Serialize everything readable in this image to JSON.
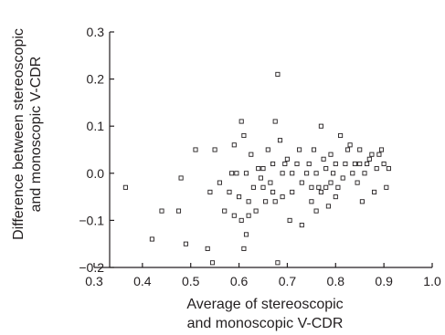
{
  "chart_data": {
    "type": "scatter",
    "xlabel_lines": [
      "Average of stereoscopic",
      "and monoscopic V-CDR"
    ],
    "ylabel_lines": [
      "Difference between stereoscopic",
      "and monoscopic V-CDR"
    ],
    "xlim": [
      0.3,
      1.0
    ],
    "ylim": [
      -0.2,
      0.3
    ],
    "xticks": [
      0.3,
      0.4,
      0.5,
      0.6,
      0.7,
      0.8,
      0.9,
      1.0
    ],
    "yticks": [
      -0.2,
      -0.1,
      0.0,
      0.1,
      0.2,
      0.3
    ],
    "xtick_labels": [
      "0.3",
      "0.4",
      "0.5",
      "0.6",
      "0.7",
      "0.8",
      "0.9",
      "1.0"
    ],
    "ytick_labels": [
      "−0.2",
      "−0.1",
      "0.0",
      "0.1",
      "0.2",
      "0.3"
    ],
    "marker": "open-square",
    "grid": false,
    "points": [
      [
        0.365,
        -0.03
      ],
      [
        0.42,
        -0.14
      ],
      [
        0.44,
        -0.08
      ],
      [
        0.475,
        -0.08
      ],
      [
        0.48,
        -0.01
      ],
      [
        0.49,
        -0.15
      ],
      [
        0.51,
        0.05
      ],
      [
        0.535,
        -0.16
      ],
      [
        0.54,
        -0.04
      ],
      [
        0.545,
        -0.19
      ],
      [
        0.55,
        0.05
      ],
      [
        0.56,
        -0.02
      ],
      [
        0.57,
        -0.08
      ],
      [
        0.58,
        -0.04
      ],
      [
        0.585,
        0.0
      ],
      [
        0.59,
        0.06
      ],
      [
        0.59,
        -0.09
      ],
      [
        0.595,
        0.0
      ],
      [
        0.6,
        -0.05
      ],
      [
        0.605,
        -0.1
      ],
      [
        0.605,
        0.11
      ],
      [
        0.61,
        -0.16
      ],
      [
        0.61,
        0.08
      ],
      [
        0.615,
        -0.13
      ],
      [
        0.615,
        0.0
      ],
      [
        0.62,
        -0.06
      ],
      [
        0.62,
        -0.09
      ],
      [
        0.625,
        0.04
      ],
      [
        0.63,
        -0.03
      ],
      [
        0.635,
        -0.08
      ],
      [
        0.64,
        0.01
      ],
      [
        0.645,
        -0.01
      ],
      [
        0.65,
        -0.03
      ],
      [
        0.65,
        0.01
      ],
      [
        0.655,
        -0.06
      ],
      [
        0.66,
        0.05
      ],
      [
        0.665,
        -0.02
      ],
      [
        0.67,
        -0.04
      ],
      [
        0.67,
        0.02
      ],
      [
        0.675,
        -0.06
      ],
      [
        0.675,
        0.11
      ],
      [
        0.68,
        0.21
      ],
      [
        0.68,
        -0.19
      ],
      [
        0.685,
        0.07
      ],
      [
        0.69,
        0.0
      ],
      [
        0.69,
        -0.05
      ],
      [
        0.695,
        0.02
      ],
      [
        0.7,
        0.03
      ],
      [
        0.705,
        -0.1
      ],
      [
        0.71,
        0.0
      ],
      [
        0.71,
        -0.04
      ],
      [
        0.72,
        0.02
      ],
      [
        0.725,
        0.05
      ],
      [
        0.73,
        -0.11
      ],
      [
        0.73,
        -0.02
      ],
      [
        0.74,
        0.0
      ],
      [
        0.745,
        0.02
      ],
      [
        0.75,
        -0.03
      ],
      [
        0.75,
        -0.06
      ],
      [
        0.755,
        0.05
      ],
      [
        0.76,
        -0.08
      ],
      [
        0.76,
        0.0
      ],
      [
        0.765,
        -0.03
      ],
      [
        0.77,
        0.1
      ],
      [
        0.77,
        -0.04
      ],
      [
        0.775,
        0.03
      ],
      [
        0.78,
        -0.03
      ],
      [
        0.78,
        0.01
      ],
      [
        0.785,
        -0.07
      ],
      [
        0.79,
        0.04
      ],
      [
        0.79,
        -0.02
      ],
      [
        0.795,
        0.0
      ],
      [
        0.8,
        -0.05
      ],
      [
        0.8,
        0.02
      ],
      [
        0.805,
        -0.03
      ],
      [
        0.81,
        0.08
      ],
      [
        0.815,
        -0.01
      ],
      [
        0.82,
        0.02
      ],
      [
        0.825,
        0.05
      ],
      [
        0.83,
        0.06
      ],
      [
        0.835,
        0.0
      ],
      [
        0.84,
        0.02
      ],
      [
        0.845,
        -0.02
      ],
      [
        0.85,
        0.05
      ],
      [
        0.85,
        0.02
      ],
      [
        0.855,
        -0.06
      ],
      [
        0.86,
        0.0
      ],
      [
        0.865,
        0.02
      ],
      [
        0.87,
        0.03
      ],
      [
        0.875,
        0.04
      ],
      [
        0.88,
        -0.04
      ],
      [
        0.885,
        0.01
      ],
      [
        0.89,
        0.04
      ],
      [
        0.895,
        0.05
      ],
      [
        0.9,
        0.02
      ],
      [
        0.905,
        -0.03
      ],
      [
        0.91,
        0.01
      ]
    ]
  }
}
